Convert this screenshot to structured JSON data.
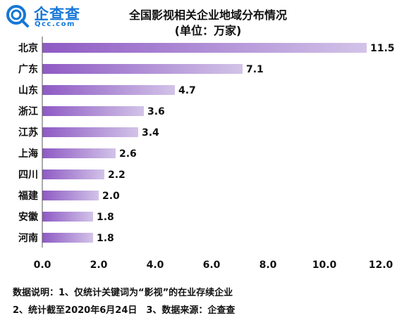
{
  "logo": {
    "name": "企查查",
    "domain": "Qcc.com",
    "brand_color": "#1677d6"
  },
  "chart_data": {
    "type": "bar",
    "orientation": "horizontal",
    "title": "全国影视相关企业地域分布情况",
    "subtitle": "(单位：万家)",
    "categories": [
      "北京",
      "广东",
      "山东",
      "浙江",
      "江苏",
      "上海",
      "四川",
      "福建",
      "安徽",
      "河南"
    ],
    "values": [
      11.5,
      7.1,
      4.7,
      3.6,
      3.4,
      2.6,
      2.2,
      2.0,
      1.8,
      1.8
    ],
    "value_labels": [
      "11.5",
      "7.1",
      "4.7",
      "3.6",
      "3.4",
      "2.6",
      "2.2",
      "2.0",
      "1.8",
      "1.8"
    ],
    "xlim": [
      0,
      12
    ],
    "x_ticks": [
      "0.0",
      "2.0",
      "4.0",
      "6.0",
      "8.0",
      "10.0",
      "12.0"
    ],
    "grid": false,
    "legend": "none",
    "bar_color_start": "#8e5ac4",
    "bar_color_end": "#d2c3e8"
  },
  "notes": {
    "line1": "数据说明：1、仅统计关键词为“影视”的在业存续企业",
    "line2": "2、统计截至2020年6月24日　3、数据来源：企查查"
  }
}
